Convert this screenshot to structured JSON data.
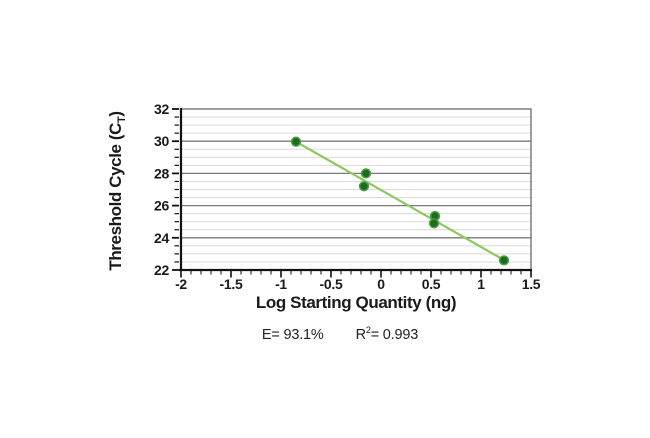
{
  "chart_data": {
    "type": "scatter",
    "title": "",
    "xlabel": "Log Starting Quantity (ng)",
    "ylabel": {
      "main": "Threshold Cycle (C",
      "sub": "T",
      "close": ")"
    },
    "xlim": [
      -2,
      1.5
    ],
    "ylim": [
      22,
      32
    ],
    "x_major_step": 0.5,
    "x_minor_step": 0.1,
    "y_major_step": 2,
    "y_minor_step": 0.5,
    "grid": "horizontal-only",
    "legend": "none",
    "x_tick_labels": [
      {
        "value": -2,
        "label": "-2"
      },
      {
        "value": -1.5,
        "label": "-1.5"
      },
      {
        "value": -1,
        "label": "-1"
      },
      {
        "value": -0.5,
        "label": "-0.5"
      },
      {
        "value": 0,
        "label": "0"
      },
      {
        "value": 0.5,
        "label": "0.5"
      },
      {
        "value": 1,
        "label": "1"
      },
      {
        "value": 1.5,
        "label": "1.5"
      }
    ],
    "y_tick_labels": [
      {
        "value": 22,
        "label": "22"
      },
      {
        "value": 24,
        "label": "24"
      },
      {
        "value": 26,
        "label": "26"
      },
      {
        "value": 28,
        "label": "28"
      },
      {
        "value": 30,
        "label": "30"
      },
      {
        "value": 32,
        "label": "32"
      }
    ],
    "points": [
      {
        "x": -0.85,
        "y": 29.97
      },
      {
        "x": -0.15,
        "y": 28.0
      },
      {
        "x": -0.17,
        "y": 27.2
      },
      {
        "x": 0.54,
        "y": 25.35
      },
      {
        "x": 0.53,
        "y": 24.9
      },
      {
        "x": 1.23,
        "y": 22.6
      }
    ],
    "trendline": {
      "x1": -0.85,
      "y1": 29.97,
      "x2": 1.23,
      "y2": 22.62
    },
    "stats": {
      "efficiency_label": "E= 93.1%",
      "r_base": "R",
      "r_sup": "2",
      "r_value": "= 0.993"
    },
    "colors": {
      "line": "#8cc860",
      "point_fill": "#1e6b1e",
      "point_stroke": "#4a9e4a",
      "grid_minor": "#d9d9d9",
      "grid_major": "#7a7a7a",
      "axis": "#111111",
      "frame": "#6b6b6b",
      "text": "#1a1a1a"
    }
  }
}
